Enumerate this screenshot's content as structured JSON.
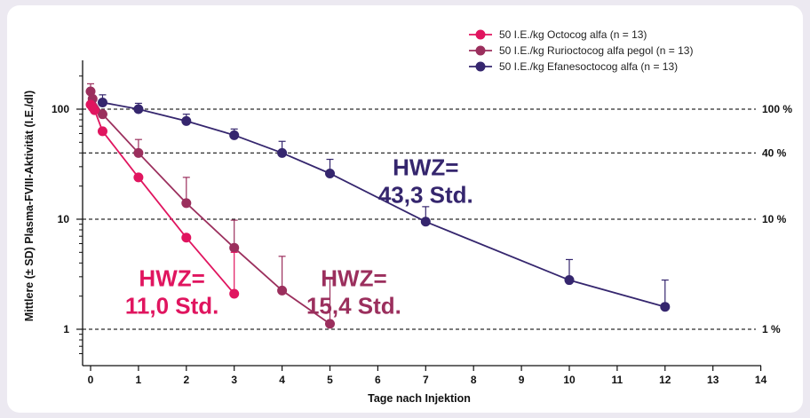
{
  "chart_data": {
    "type": "line",
    "xlabel": "Tage nach Injektion",
    "ylabel": "Mittlere (± SD) Plasma-FVIII-Aktivität (I.E./dl)",
    "xlim": [
      0,
      14
    ],
    "ylim": [
      0.55,
      330
    ],
    "y_scale": "log",
    "x_ticks": [
      "0",
      "1",
      "2",
      "3",
      "4",
      "5",
      "6",
      "7",
      "8",
      "9",
      "10",
      "11",
      "12",
      "13",
      "14"
    ],
    "y_ticks": [
      {
        "value": 1,
        "label": "1"
      },
      {
        "value": 10,
        "label": "10"
      },
      {
        "value": 100,
        "label": "100"
      }
    ],
    "legend_position": "top-right",
    "reference_lines": [
      {
        "value": 100,
        "label": "100 %"
      },
      {
        "value": 40,
        "label": "40 %"
      },
      {
        "value": 10,
        "label": "10 %"
      },
      {
        "value": 1,
        "label": "1 %"
      }
    ],
    "series": [
      {
        "name": "50 I.E./kg Octocog alfa (n = 13)",
        "color": "#e0155f",
        "x": [
          0,
          0.042,
          0.083,
          0.25,
          1,
          2,
          3
        ],
        "y": [
          110,
          104,
          98,
          63,
          24,
          6.8,
          2.1
        ],
        "err_upper": [
          null,
          null,
          null,
          null,
          null,
          null,
          5.0
        ]
      },
      {
        "name": "50 I.E./kg Rurioctocog alfa pegol (n = 13)",
        "color": "#9b2f5d",
        "x": [
          0,
          0.042,
          0.25,
          1,
          2,
          3,
          4,
          5
        ],
        "y": [
          145,
          124,
          90,
          40,
          14,
          5.5,
          2.25,
          1.12
        ],
        "err_upper": [
          170,
          null,
          null,
          53,
          24,
          9.8,
          4.6,
          2.9
        ]
      },
      {
        "name": "50 I.E./kg Efanesoctocog alfa (n = 13)",
        "color": "#35266e",
        "x": [
          0.25,
          1,
          2,
          3,
          4,
          5,
          7,
          10,
          12
        ],
        "y": [
          115,
          100,
          78,
          58,
          40,
          26,
          9.5,
          2.8,
          1.6
        ],
        "err_upper": [
          135,
          113,
          90,
          66,
          51,
          35,
          13,
          4.3,
          2.8
        ]
      }
    ],
    "annotations": [
      {
        "lines": [
          "HWZ=",
          "43,3 Std."
        ],
        "color": "#35266e",
        "at": [
          7.0,
          25
        ]
      },
      {
        "lines": [
          "HWZ=",
          "11,0 Std."
        ],
        "color": "#e0155f",
        "at": [
          1.7,
          2.45
        ]
      },
      {
        "lines": [
          "HWZ=",
          "15,4 Std."
        ],
        "color": "#9b2f5d",
        "at": [
          5.5,
          2.45
        ]
      }
    ]
  }
}
